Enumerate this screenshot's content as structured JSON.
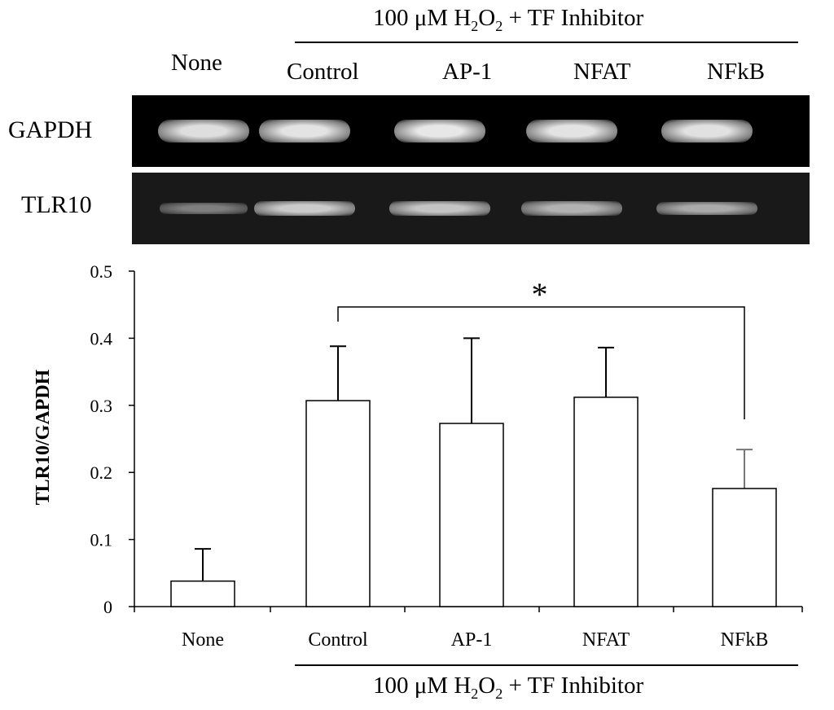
{
  "header": {
    "treatment_prefix": "100 μM H",
    "treatment_sub1": "2",
    "treatment_mid": "O",
    "treatment_sub2": "2",
    "treatment_suffix": " + TF Inhibitor"
  },
  "blot": {
    "column_labels": [
      "None",
      "Control",
      "AP-1",
      "NFAT",
      "NFkB"
    ],
    "rows": [
      {
        "label": "GAPDH",
        "band_intensity": [
          0.85,
          0.88,
          0.9,
          0.88,
          0.87
        ]
      },
      {
        "label": "TLR10",
        "band_intensity": [
          0.35,
          0.75,
          0.72,
          0.62,
          0.58
        ]
      }
    ]
  },
  "colors": {
    "gel_background": "#000000",
    "band": "#e6e6e6",
    "bar_fill": "#ffffff",
    "bar_stroke": "#000000",
    "error_bar_highlight": "#777777"
  },
  "chart_data": {
    "type": "bar",
    "categories": [
      "None",
      "Control",
      "AP-1",
      "NFAT",
      "NFkB"
    ],
    "values": [
      0.038,
      0.307,
      0.273,
      0.312,
      0.176
    ],
    "error_upper": [
      0.086,
      0.388,
      0.4,
      0.386,
      0.234
    ],
    "ylabel": "TLR10/GAPDH",
    "xlabel": "",
    "title": "",
    "ylim": [
      0,
      0.5
    ],
    "yticks": [
      "0",
      "0.1",
      "0.2",
      "0.3",
      "0.4",
      "0.5"
    ],
    "ytick_values": [
      0,
      0.1,
      0.2,
      0.3,
      0.4,
      0.5
    ],
    "grid": false,
    "significance": {
      "from": "Control",
      "to": "NFkB",
      "label": "*"
    },
    "group_label": "100 μM H2O2 + TF Inhibitor"
  }
}
